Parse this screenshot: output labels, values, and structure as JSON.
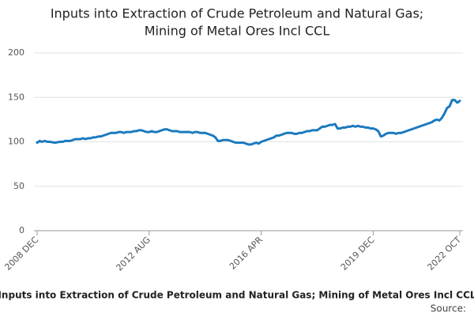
{
  "chart_data": {
    "type": "line",
    "title": [
      "Inputs into Extraction of Crude Petroleum and Natural Gas;",
      "Mining of Metal Ores Incl CCL"
    ],
    "footer_title": "Inputs into Extraction of Crude Petroleum and Natural Gas; Mining of Metal Ores Incl CCL",
    "source": "Source:",
    "color": "#1a7abf",
    "grid": true,
    "ylim": [
      0,
      200
    ],
    "yticks": [
      0,
      50,
      100,
      150,
      200
    ],
    "categories": [
      "2008 DEC",
      null,
      null,
      null,
      null,
      null,
      null,
      null,
      null,
      null,
      null,
      null,
      null,
      null,
      null,
      null,
      null,
      null,
      null,
      null,
      null,
      null,
      null,
      null,
      null,
      null,
      null,
      null,
      null,
      null,
      null,
      null,
      null,
      null,
      null,
      null,
      null,
      null,
      null,
      null,
      null,
      null,
      null,
      null,
      "2012 AUG",
      null,
      null,
      null,
      null,
      null,
      null,
      null,
      null,
      null,
      null,
      null,
      null,
      null,
      null,
      null,
      null,
      null,
      null,
      null,
      null,
      null,
      null,
      null,
      null,
      null,
      null,
      null,
      null,
      null,
      null,
      null,
      null,
      null,
      null,
      null,
      null,
      null,
      null,
      null,
      null,
      null,
      null,
      null,
      "2016 APR",
      null,
      null,
      null,
      null,
      null,
      null,
      null,
      null,
      null,
      null,
      null,
      null,
      null,
      null,
      null,
      null,
      null,
      null,
      null,
      null,
      null,
      null,
      null,
      null,
      null,
      null,
      null,
      null,
      null,
      null,
      null,
      null,
      null,
      null,
      null,
      null,
      null,
      null,
      null,
      null,
      null,
      null,
      null,
      "2019 DEC",
      null,
      null,
      null,
      null,
      null,
      null,
      null,
      null,
      null,
      null,
      null,
      null,
      null,
      null,
      null,
      null,
      null,
      null,
      null,
      null,
      null,
      null,
      null,
      null,
      null,
      null,
      null,
      null,
      null,
      null,
      null,
      null,
      null,
      "2022 OCT"
    ],
    "values": [
      99,
      101,
      100,
      101,
      100,
      100,
      99.5,
      99,
      99.5,
      100,
      100,
      101,
      101,
      101,
      102,
      103,
      103,
      103,
      104,
      103,
      104,
      104,
      105,
      105,
      106,
      106,
      107,
      108,
      109,
      110,
      110,
      110,
      111,
      111,
      110,
      111,
      111,
      111,
      112,
      112,
      113,
      113,
      112,
      111,
      111,
      112,
      111,
      111,
      112,
      113,
      114,
      114,
      113,
      112,
      112,
      112,
      111,
      111,
      111,
      111,
      111,
      110,
      111,
      111,
      110,
      110,
      110,
      109,
      108,
      107,
      105,
      101,
      101,
      102,
      102,
      102,
      101,
      100,
      99,
      99,
      99,
      99,
      98,
      97,
      97,
      98,
      99,
      98,
      100,
      101,
      102,
      103,
      104,
      105,
      107,
      107,
      108,
      109,
      110,
      110,
      110,
      109,
      109,
      110,
      110,
      111,
      112,
      112,
      113,
      113,
      113,
      115,
      117,
      117,
      118,
      119,
      119,
      120,
      115,
      115,
      116,
      116,
      117,
      117,
      118,
      117,
      118,
      117,
      117,
      116,
      116,
      115,
      115,
      114,
      112,
      106,
      107,
      109,
      110,
      110,
      110,
      109,
      110,
      110,
      111,
      112,
      113,
      114,
      115,
      116,
      117,
      118,
      119,
      120,
      121,
      122,
      124,
      125,
      124,
      127,
      132,
      138,
      140,
      147,
      147,
      144,
      146
    ]
  }
}
